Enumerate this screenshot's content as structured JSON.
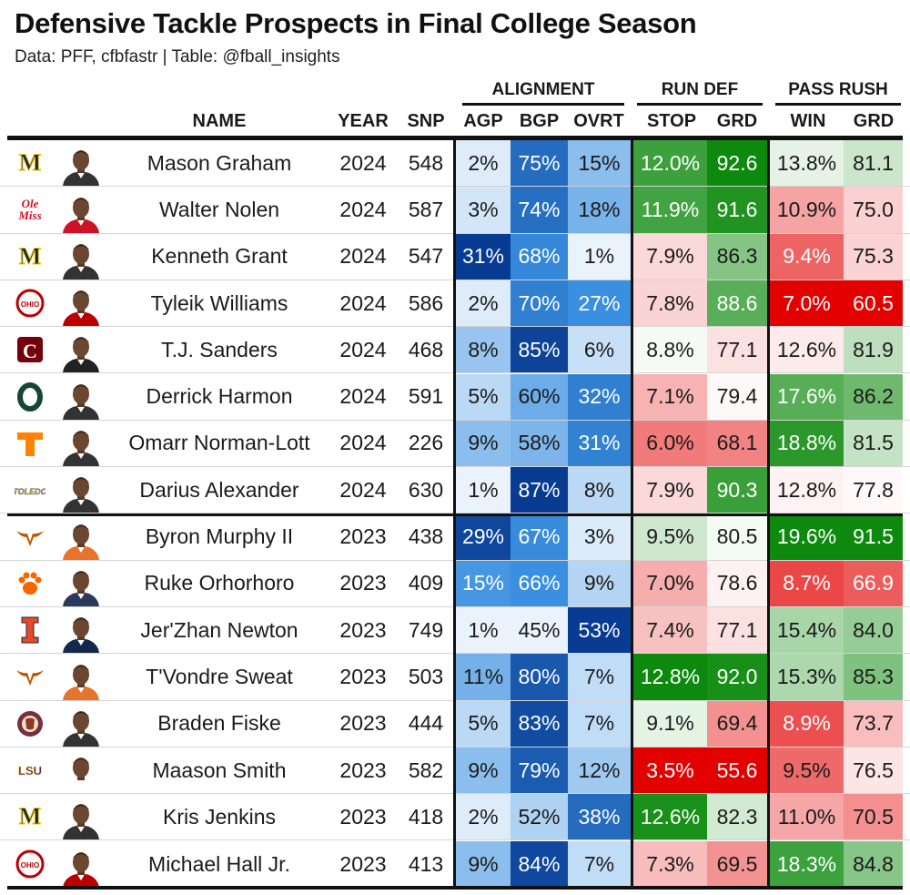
{
  "title": "Defensive Tackle Prospects in Final College Season",
  "subtitle": "Data: PFF, cfbfastr | Table: @fball_insights",
  "group_headers": {
    "alignment": "ALIGNMENT",
    "run_def": "RUN DEF",
    "pass_rush": "PASS RUSH"
  },
  "columns": {
    "name": "NAME",
    "year": "YEAR",
    "snp": "SNP",
    "agp": "AGP",
    "bgp": "BGP",
    "ovrt": "OVRT",
    "stop": "STOP",
    "run_grd": "GRD",
    "win": "WIN",
    "pass_grd": "GRD"
  },
  "chart_data": {
    "type": "table",
    "columns": [
      "NAME",
      "YEAR",
      "SNP",
      "AGP",
      "BGP",
      "OVRT",
      "STOP",
      "GRD",
      "WIN",
      "GRD"
    ],
    "rows": [
      {
        "school": "Michigan",
        "logo_text": "M",
        "logo_color": "#0b2a4a",
        "accent": "#f4c20d",
        "jersey": "#333333",
        "name": "Mason Graham",
        "year": "2024",
        "snp": "548",
        "agp": "2%",
        "bgp": "75%",
        "ovrt": "15%",
        "stop": "12.0%",
        "run_grd": "92.6",
        "win": "13.8%",
        "pass_grd": "81.1"
      },
      {
        "school": "Ole Miss",
        "logo_text": "Ole Miss",
        "logo_color": "#ce1126",
        "accent": "#14213d",
        "jersey": "#ce1126",
        "name": "Walter Nolen",
        "year": "2024",
        "snp": "587",
        "agp": "3%",
        "bgp": "74%",
        "ovrt": "18%",
        "stop": "11.9%",
        "run_grd": "91.6",
        "win": "10.9%",
        "pass_grd": "75.0"
      },
      {
        "school": "Michigan",
        "logo_text": "M",
        "logo_color": "#0b2a4a",
        "accent": "#f4c20d",
        "jersey": "#333333",
        "name": "Kenneth Grant",
        "year": "2024",
        "snp": "547",
        "agp": "31%",
        "bgp": "68%",
        "ovrt": "1%",
        "stop": "7.9%",
        "run_grd": "86.3",
        "win": "9.4%",
        "pass_grd": "75.3"
      },
      {
        "school": "Ohio State",
        "logo_text": "OHIO STATE",
        "logo_color": "#bb0000",
        "accent": "#666666",
        "jersey": "#bb0000",
        "name": "Tyleik Williams",
        "year": "2024",
        "snp": "586",
        "agp": "2%",
        "bgp": "70%",
        "ovrt": "27%",
        "stop": "7.8%",
        "run_grd": "88.6",
        "win": "7.0%",
        "pass_grd": "60.5"
      },
      {
        "school": "South Carolina",
        "logo_text": "C",
        "logo_color": "#73000a",
        "accent": "#ffffff",
        "jersey": "#222222",
        "name": "T.J. Sanders",
        "year": "2024",
        "snp": "468",
        "agp": "8%",
        "bgp": "85%",
        "ovrt": "6%",
        "stop": "8.8%",
        "run_grd": "77.1",
        "win": "12.6%",
        "pass_grd": "81.9"
      },
      {
        "school": "Oregon",
        "logo_text": "O",
        "logo_color": "#154733",
        "accent": "#fee11a",
        "jersey": "#333333",
        "name": "Derrick Harmon",
        "year": "2024",
        "snp": "591",
        "agp": "5%",
        "bgp": "60%",
        "ovrt": "32%",
        "stop": "7.1%",
        "run_grd": "79.4",
        "win": "17.6%",
        "pass_grd": "86.2"
      },
      {
        "school": "Tennessee",
        "logo_text": "T",
        "logo_color": "#ff8200",
        "accent": "#ffffff",
        "jersey": "#333333",
        "name": "Omarr Norman-Lott",
        "year": "2024",
        "snp": "226",
        "agp": "9%",
        "bgp": "58%",
        "ovrt": "31%",
        "stop": "6.0%",
        "run_grd": "68.1",
        "win": "18.8%",
        "pass_grd": "81.5"
      },
      {
        "school": "Toledo",
        "logo_text": "TOLEDO",
        "logo_color": "#d4a017",
        "accent": "#15397f",
        "jersey": "#333333",
        "name": "Darius Alexander",
        "year": "2024",
        "snp": "630",
        "agp": "1%",
        "bgp": "87%",
        "ovrt": "8%",
        "stop": "7.9%",
        "run_grd": "90.3",
        "win": "12.8%",
        "pass_grd": "77.8"
      },
      {
        "school": "Texas",
        "logo_text": "longhorn",
        "logo_color": "#bf5700",
        "accent": "#ffffff",
        "jersey": "#e8732a",
        "name": "Byron Murphy II",
        "year": "2023",
        "snp": "438",
        "agp": "29%",
        "bgp": "67%",
        "ovrt": "3%",
        "stop": "9.5%",
        "run_grd": "80.5",
        "win": "19.6%",
        "pass_grd": "91.5"
      },
      {
        "school": "Clemson",
        "logo_text": "paw",
        "logo_color": "#f56600",
        "accent": "#ffffff",
        "jersey": "#2a3a5a",
        "name": "Ruke Orhorhoro",
        "year": "2023",
        "snp": "409",
        "agp": "15%",
        "bgp": "66%",
        "ovrt": "9%",
        "stop": "7.0%",
        "run_grd": "78.6",
        "win": "8.7%",
        "pass_grd": "66.9"
      },
      {
        "school": "Illinois",
        "logo_text": "I",
        "logo_color": "#e84a27",
        "accent": "#13294b",
        "jersey": "#13294b",
        "name": "Jer'Zhan Newton",
        "year": "2023",
        "snp": "749",
        "agp": "1%",
        "bgp": "45%",
        "ovrt": "53%",
        "stop": "7.4%",
        "run_grd": "77.1",
        "win": "15.4%",
        "pass_grd": "84.0"
      },
      {
        "school": "Texas",
        "logo_text": "longhorn",
        "logo_color": "#bf5700",
        "accent": "#ffffff",
        "jersey": "#e8732a",
        "name": "T'Vondre Sweat",
        "year": "2023",
        "snp": "503",
        "agp": "11%",
        "bgp": "80%",
        "ovrt": "7%",
        "stop": "12.8%",
        "run_grd": "92.0",
        "win": "15.3%",
        "pass_grd": "85.3"
      },
      {
        "school": "Florida State",
        "logo_text": "FSU",
        "logo_color": "#782f40",
        "accent": "#ceb888",
        "jersey": "#333333",
        "name": "Braden Fiske",
        "year": "2023",
        "snp": "444",
        "agp": "5%",
        "bgp": "83%",
        "ovrt": "7%",
        "stop": "9.1%",
        "run_grd": "69.4",
        "win": "8.9%",
        "pass_grd": "73.7"
      },
      {
        "school": "LSU",
        "logo_text": "LSU",
        "logo_color": "#461d7c",
        "accent": "#fdd023",
        "jersey": "#ffffff",
        "name": "Maason Smith",
        "year": "2023",
        "snp": "582",
        "agp": "9%",
        "bgp": "79%",
        "ovrt": "12%",
        "stop": "3.5%",
        "run_grd": "55.6",
        "win": "9.5%",
        "pass_grd": "76.5"
      },
      {
        "school": "Michigan",
        "logo_text": "M",
        "logo_color": "#0b2a4a",
        "accent": "#f4c20d",
        "jersey": "#333333",
        "name": "Kris Jenkins",
        "year": "2023",
        "snp": "418",
        "agp": "2%",
        "bgp": "52%",
        "ovrt": "38%",
        "stop": "12.6%",
        "run_grd": "82.3",
        "win": "11.0%",
        "pass_grd": "70.5"
      },
      {
        "school": "Ohio State",
        "logo_text": "OHIO STATE",
        "logo_color": "#bb0000",
        "accent": "#666666",
        "jersey": "#bb0000",
        "name": "Michael Hall Jr.",
        "year": "2023",
        "snp": "413",
        "agp": "9%",
        "bgp": "84%",
        "ovrt": "7%",
        "stop": "7.3%",
        "run_grd": "69.5",
        "win": "18.3%",
        "pass_grd": "84.8"
      }
    ]
  },
  "colors": {
    "blue_low": "#e8f1fb",
    "blue_high": "#0a3d91",
    "green": "#129412",
    "red": "#e00000",
    "neutral": "#ffffff"
  }
}
